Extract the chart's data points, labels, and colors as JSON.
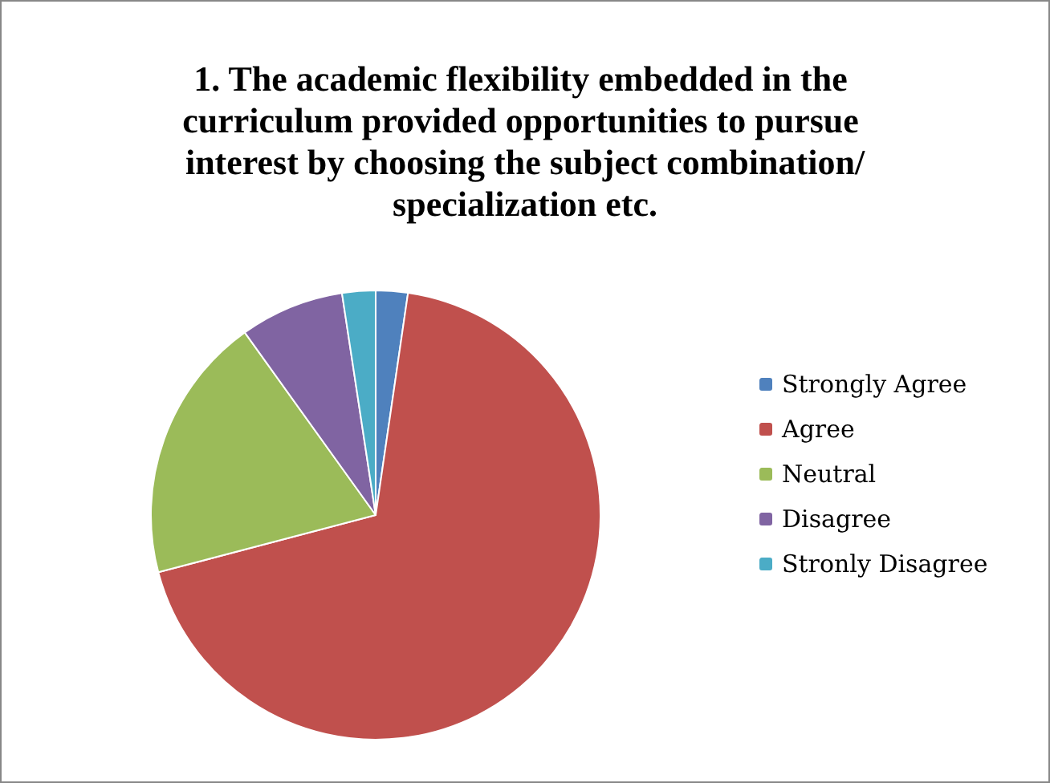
{
  "chart_data": {
    "type": "pie",
    "title": "1. The academic flexibility embedded in the curriculum provided opportunities to pursue interest by choosing the subject combination/specialization etc.",
    "categories": [
      "Strongly Agree",
      "Agree",
      "Neutral",
      "Disagree",
      "Stronly Disagree"
    ],
    "values": [
      2.3,
      68.6,
      19.2,
      7.5,
      2.4
    ],
    "colors": [
      "#4f81bd",
      "#c0504d",
      "#9bbb59",
      "#8064a2",
      "#4bacc6"
    ],
    "legend": "right"
  }
}
